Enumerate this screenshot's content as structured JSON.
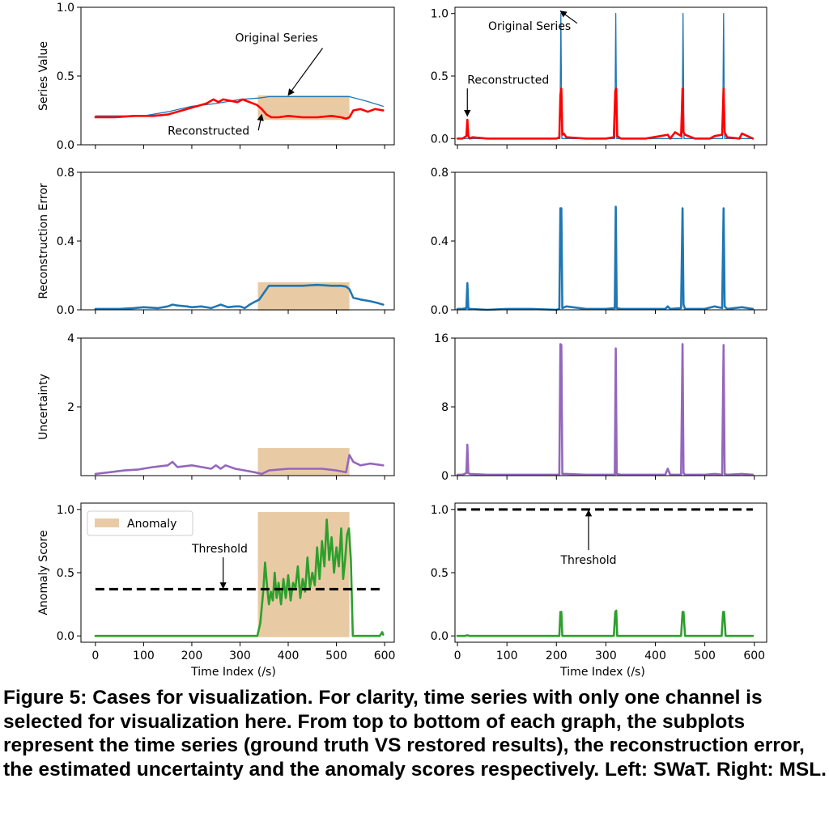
{
  "figure": {
    "caption": "Figure 5: Cases for visualization. For clarity, time series with only one channel is selected for visualization here. From top to bottom of each graph, the subplots represent the time series (ground truth VS restored results), the reconstruction error, the estimated uncertainty and the anomaly scores respectively. Left: SWaT. Right: MSL."
  },
  "colors": {
    "original": "#1f77b4",
    "reconstructed": "#ff0000",
    "error": "#1f77b4",
    "uncertainty": "#9467bd",
    "score": "#2ca02c",
    "anomaly_fill": "#e8cba5",
    "threshold": "#000000"
  },
  "chart_data": [
    {
      "id": "swat-series",
      "col": 0,
      "row": 0,
      "type": "line",
      "ylabel": "Series Value",
      "xlim": [
        -30,
        620
      ],
      "ylim": [
        0,
        1.0
      ],
      "yticks": [
        0,
        0.5,
        1.0
      ],
      "ytick_labels": [
        "0.0",
        "0.5",
        "1.0"
      ],
      "xticks": [
        0,
        100,
        200,
        300,
        400,
        500,
        600
      ],
      "show_xtick_labels": false,
      "anomaly_span": [
        337,
        527
      ],
      "series": [
        {
          "name": "Original Series",
          "color_key": "original",
          "width": 1.3,
          "x": [
            0,
            100,
            150,
            200,
            250,
            300,
            340,
            360,
            400,
            450,
            500,
            527,
            560,
            597
          ],
          "y": [
            0.21,
            0.21,
            0.24,
            0.28,
            0.3,
            0.33,
            0.34,
            0.35,
            0.35,
            0.35,
            0.35,
            0.35,
            0.32,
            0.28
          ]
        },
        {
          "name": "Reconstructed",
          "color_key": "reconstructed",
          "width": 2.6,
          "x": [
            0,
            40,
            80,
            120,
            150,
            180,
            210,
            230,
            245,
            255,
            265,
            280,
            295,
            305,
            320,
            335,
            345,
            355,
            365,
            380,
            400,
            430,
            460,
            490,
            510,
            520,
            527,
            535,
            550,
            565,
            580,
            597
          ],
          "y": [
            0.2,
            0.2,
            0.21,
            0.21,
            0.22,
            0.25,
            0.28,
            0.3,
            0.33,
            0.31,
            0.33,
            0.32,
            0.31,
            0.33,
            0.31,
            0.29,
            0.26,
            0.22,
            0.2,
            0.2,
            0.21,
            0.2,
            0.2,
            0.21,
            0.2,
            0.19,
            0.2,
            0.25,
            0.26,
            0.24,
            0.26,
            0.25
          ]
        }
      ],
      "annotations": [
        {
          "text": "Original Series",
          "tx": 290,
          "ty": 0.75,
          "ax": 400,
          "ay": 0.36,
          "from": "arrow"
        },
        {
          "text": "Reconstructed",
          "tx": 150,
          "ty": 0.075,
          "ax": 345,
          "ay": 0.22,
          "from": "arrow"
        }
      ]
    },
    {
      "id": "msl-series",
      "col": 1,
      "row": 0,
      "type": "line",
      "ylabel": "",
      "xlim": [
        -5,
        625
      ],
      "ylim": [
        -0.05,
        1.05
      ],
      "yticks": [
        0,
        0.5,
        1.0
      ],
      "ytick_labels": [
        "0.0",
        "0.5",
        "1.0"
      ],
      "xticks": [
        0,
        100,
        200,
        300,
        400,
        500,
        600
      ],
      "show_xtick_labels": false,
      "series": [
        {
          "name": "Original Series",
          "color_key": "original",
          "width": 1.3,
          "x": [
            0,
            207,
            208,
            209,
            210,
            211,
            318,
            319,
            320,
            321,
            322,
            454,
            455,
            456,
            457,
            458,
            536,
            537,
            538,
            539,
            540,
            597
          ],
          "y": [
            0.0,
            0.0,
            0.5,
            1.0,
            0.5,
            0.0,
            0.0,
            0.5,
            1.0,
            0.5,
            0.0,
            0.0,
            0.5,
            1.0,
            0.5,
            0.0,
            0.0,
            0.5,
            1.0,
            0.5,
            0.0,
            0.0
          ]
        },
        {
          "name": "Reconstructed",
          "color_key": "reconstructed",
          "width": 2.6,
          "x": [
            0,
            10,
            18,
            20,
            22,
            25,
            30,
            60,
            100,
            150,
            200,
            206,
            208,
            210,
            212,
            215,
            220,
            260,
            300,
            316,
            319,
            321,
            323,
            330,
            380,
            425,
            430,
            440,
            452,
            455,
            457,
            460,
            480,
            510,
            520,
            535,
            538,
            540,
            545,
            570,
            575,
            597
          ],
          "y": [
            0.0,
            0.0,
            0.02,
            0.15,
            0.02,
            0.0,
            0.01,
            0.0,
            0.0,
            0.0,
            0.0,
            0.01,
            0.35,
            0.4,
            0.03,
            0.04,
            0.01,
            0.0,
            0.0,
            0.01,
            0.38,
            0.4,
            0.02,
            0.0,
            0.0,
            0.03,
            0.0,
            0.05,
            0.02,
            0.4,
            0.05,
            0.03,
            0.0,
            0.0,
            0.02,
            0.03,
            0.4,
            0.05,
            0.01,
            0.0,
            0.04,
            0.0
          ]
        }
      ],
      "annotations": [
        {
          "text": "Original Series",
          "tx": 62,
          "ty": 0.87,
          "ax": 208,
          "ay": 1.02,
          "from": "text-right"
        },
        {
          "text": "Reconstructed",
          "tx": 20,
          "ty": 0.44,
          "ax": 20,
          "ay": 0.18,
          "from": "text-left"
        }
      ]
    },
    {
      "id": "swat-error",
      "col": 0,
      "row": 1,
      "type": "line",
      "ylabel": "Reconstruction Error",
      "xlim": [
        -30,
        620
      ],
      "ylim": [
        0,
        0.8
      ],
      "yticks": [
        0,
        0.4,
        0.8
      ],
      "ytick_labels": [
        "0.0",
        "0.4",
        "0.8"
      ],
      "xticks": [
        0,
        100,
        200,
        300,
        400,
        500,
        600
      ],
      "show_xtick_labels": false,
      "anomaly_span": [
        337,
        527
      ],
      "series": [
        {
          "name": "",
          "color_key": "error",
          "width": 2.6,
          "x": [
            0,
            50,
            80,
            100,
            130,
            150,
            160,
            170,
            190,
            200,
            220,
            240,
            250,
            260,
            275,
            290,
            300,
            310,
            320,
            330,
            340,
            350,
            360,
            380,
            400,
            430,
            460,
            490,
            510,
            520,
            527,
            535,
            550,
            570,
            585,
            597
          ],
          "y": [
            0.005,
            0.005,
            0.01,
            0.015,
            0.01,
            0.02,
            0.03,
            0.025,
            0.02,
            0.015,
            0.02,
            0.01,
            0.02,
            0.03,
            0.015,
            0.02,
            0.02,
            0.01,
            0.03,
            0.045,
            0.06,
            0.1,
            0.14,
            0.14,
            0.14,
            0.14,
            0.145,
            0.14,
            0.14,
            0.135,
            0.12,
            0.07,
            0.06,
            0.05,
            0.04,
            0.03
          ]
        }
      ]
    },
    {
      "id": "msl-error",
      "col": 1,
      "row": 1,
      "type": "line",
      "ylabel": "",
      "xlim": [
        -5,
        625
      ],
      "ylim": [
        0,
        0.8
      ],
      "yticks": [
        0,
        0.4,
        0.8
      ],
      "ytick_labels": [
        "0.0",
        "0.4",
        "0.8"
      ],
      "xticks": [
        0,
        100,
        200,
        300,
        400,
        500,
        600
      ],
      "show_xtick_labels": false,
      "series": [
        {
          "name": "",
          "color_key": "error",
          "width": 2.6,
          "x": [
            0,
            10,
            18,
            20,
            22,
            25,
            60,
            100,
            150,
            200,
            206,
            208,
            210,
            212,
            220,
            260,
            300,
            318,
            320,
            322,
            330,
            380,
            420,
            425,
            430,
            452,
            455,
            457,
            460,
            500,
            520,
            535,
            538,
            540,
            545,
            575,
            597
          ],
          "y": [
            0.005,
            0.005,
            0.01,
            0.155,
            0.01,
            0.005,
            0.0,
            0.005,
            0.005,
            0.0,
            0.005,
            0.59,
            0.59,
            0.01,
            0.02,
            0.005,
            0.005,
            0.01,
            0.6,
            0.01,
            0.005,
            0.005,
            0.005,
            0.02,
            0.005,
            0.01,
            0.59,
            0.03,
            0.005,
            0.005,
            0.02,
            0.01,
            0.59,
            0.02,
            0.005,
            0.015,
            0.005
          ]
        }
      ]
    },
    {
      "id": "swat-uncertainty",
      "col": 0,
      "row": 2,
      "type": "line",
      "ylabel": "Uncertainty",
      "xlim": [
        -30,
        620
      ],
      "ylim": [
        0,
        4
      ],
      "yticks": [
        2,
        4
      ],
      "ytick_labels": [
        "2",
        "4"
      ],
      "xticks": [
        0,
        100,
        200,
        300,
        400,
        500,
        600
      ],
      "show_xtick_labels": false,
      "anomaly_span": [
        337,
        527
      ],
      "series": [
        {
          "name": "",
          "color_key": "uncertainty",
          "width": 2.6,
          "x": [
            0,
            30,
            60,
            90,
            120,
            150,
            160,
            170,
            200,
            220,
            240,
            250,
            260,
            270,
            290,
            310,
            330,
            345,
            360,
            400,
            440,
            470,
            500,
            520,
            527,
            535,
            550,
            570,
            597
          ],
          "y": [
            0.05,
            0.1,
            0.15,
            0.18,
            0.25,
            0.3,
            0.4,
            0.25,
            0.3,
            0.25,
            0.2,
            0.3,
            0.2,
            0.3,
            0.2,
            0.15,
            0.1,
            0.05,
            0.15,
            0.2,
            0.2,
            0.2,
            0.15,
            0.1,
            0.6,
            0.4,
            0.3,
            0.35,
            0.3
          ]
        }
      ]
    },
    {
      "id": "msl-uncertainty",
      "col": 1,
      "row": 2,
      "type": "line",
      "ylabel": "",
      "xlim": [
        -5,
        625
      ],
      "ylim": [
        0,
        16
      ],
      "yticks": [
        0,
        8,
        16
      ],
      "ytick_labels": [
        "0",
        "8",
        "16"
      ],
      "xticks": [
        0,
        100,
        200,
        300,
        400,
        500,
        600
      ],
      "show_xtick_labels": false,
      "series": [
        {
          "name": "",
          "color_key": "uncertainty",
          "width": 2.6,
          "x": [
            0,
            10,
            18,
            20,
            22,
            25,
            60,
            100,
            150,
            200,
            206,
            208,
            210,
            212,
            220,
            260,
            300,
            318,
            320,
            322,
            330,
            380,
            420,
            425,
            430,
            452,
            455,
            457,
            460,
            500,
            520,
            535,
            538,
            540,
            545,
            575,
            597
          ],
          "y": [
            0.1,
            0.1,
            0.3,
            3.6,
            0.3,
            0.2,
            0.1,
            0.1,
            0.1,
            0.1,
            0.1,
            15.3,
            15.2,
            0.2,
            0.2,
            0.1,
            0.1,
            0.1,
            14.8,
            0.2,
            0.1,
            0.1,
            0.1,
            0.8,
            0.1,
            0.1,
            15.3,
            0.3,
            0.1,
            0.1,
            0.2,
            0.1,
            15.2,
            0.2,
            0.1,
            0.2,
            0.1
          ]
        }
      ]
    },
    {
      "id": "swat-score",
      "col": 0,
      "row": 3,
      "type": "line",
      "ylabel": "Anomaly Score",
      "xlabel": "Time Index (/s)",
      "xlim": [
        -30,
        620
      ],
      "ylim": [
        -0.05,
        1.05
      ],
      "yticks": [
        0,
        0.5,
        1.0
      ],
      "ytick_labels": [
        "0.0",
        "0.5",
        "1.0"
      ],
      "xticks": [
        0,
        100,
        200,
        300,
        400,
        500,
        600
      ],
      "show_xtick_labels": true,
      "xtick_labels": [
        "0",
        "100",
        "200",
        "300",
        "400",
        "500",
        "600"
      ],
      "anomaly_span": [
        337,
        527
      ],
      "legend": {
        "label": "Anomaly",
        "loc": "upper-left"
      },
      "threshold": {
        "value": 0.37,
        "label": "Threshold",
        "label_x": 200,
        "label_y": 0.66,
        "arrow_x": 265
      },
      "series": [
        {
          "name": "",
          "color_key": "score",
          "width": 2.6,
          "x": [
            0,
            100,
            200,
            300,
            336,
            342,
            348,
            352,
            356,
            360,
            364,
            368,
            372,
            376,
            380,
            385,
            390,
            395,
            400,
            405,
            410,
            415,
            420,
            425,
            430,
            435,
            440,
            445,
            450,
            455,
            460,
            465,
            470,
            475,
            480,
            485,
            490,
            495,
            500,
            505,
            510,
            514,
            518,
            522,
            526,
            530,
            534,
            540,
            560,
            580,
            590,
            595,
            597
          ],
          "y": [
            0.0,
            0.0,
            0.0,
            0.0,
            0.0,
            0.1,
            0.35,
            0.58,
            0.4,
            0.25,
            0.35,
            0.28,
            0.5,
            0.3,
            0.42,
            0.25,
            0.45,
            0.3,
            0.48,
            0.28,
            0.42,
            0.38,
            0.55,
            0.3,
            0.45,
            0.35,
            0.62,
            0.38,
            0.5,
            0.4,
            0.7,
            0.45,
            0.75,
            0.55,
            0.92,
            0.6,
            0.78,
            0.5,
            0.7,
            0.55,
            0.85,
            0.45,
            0.6,
            0.8,
            0.85,
            0.6,
            0.0,
            0.0,
            0.0,
            0.0,
            0.0,
            0.03,
            0.01
          ]
        }
      ]
    },
    {
      "id": "msl-score",
      "col": 1,
      "row": 3,
      "type": "line",
      "ylabel": "",
      "xlabel": "Time Index (/s)",
      "xlim": [
        -5,
        625
      ],
      "ylim": [
        -0.05,
        1.05
      ],
      "yticks": [
        0,
        0.5,
        1.0
      ],
      "ytick_labels": [
        "0.0",
        "0.5",
        "1.0"
      ],
      "xticks": [
        0,
        100,
        200,
        300,
        400,
        500,
        600
      ],
      "show_xtick_labels": true,
      "xtick_labels": [
        "0",
        "100",
        "200",
        "300",
        "400",
        "500",
        "600"
      ],
      "threshold": {
        "value": 1.0,
        "label": "Threshold",
        "label_x": 265,
        "label_y": 0.57,
        "arrow_x": 265
      },
      "series": [
        {
          "name": "",
          "color_key": "score",
          "width": 2.6,
          "x": [
            0,
            15,
            20,
            25,
            200,
            206,
            208,
            210,
            212,
            220,
            316,
            319,
            321,
            323,
            330,
            452,
            455,
            457,
            460,
            534,
            537,
            539,
            542,
            597
          ],
          "y": [
            0.0,
            0.0,
            0.005,
            0.0,
            0.0,
            0.0,
            0.19,
            0.19,
            0.0,
            0.0,
            0.0,
            0.19,
            0.2,
            0.0,
            0.0,
            0.0,
            0.19,
            0.19,
            0.0,
            0.0,
            0.19,
            0.19,
            0.0,
            0.0
          ]
        }
      ]
    }
  ]
}
